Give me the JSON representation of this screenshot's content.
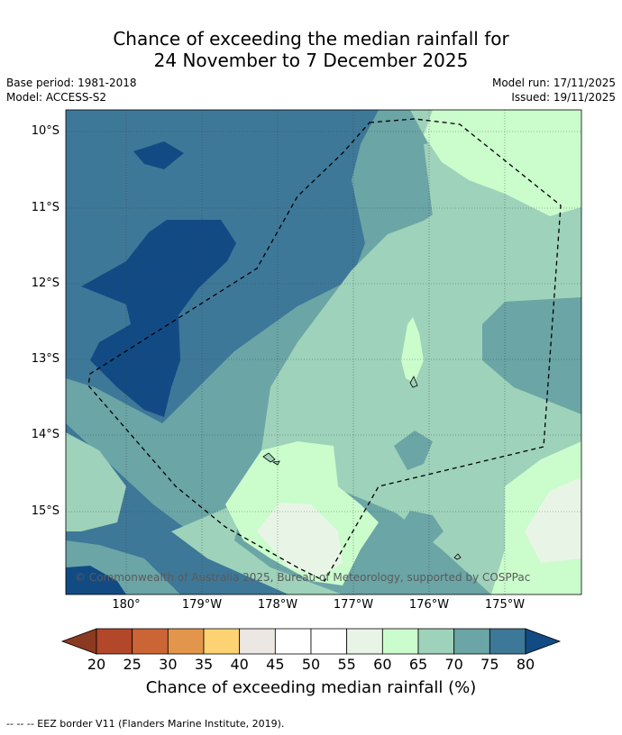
{
  "title_line1": "Chance of exceeding the median rainfall for",
  "title_line2": "24 November to 7 December 2025",
  "base_period": "Base period: 1981-2018",
  "model": "Model: ACCESS-S2",
  "model_run": "Model run: 17/11/2025",
  "issued": "Issued: 19/11/2025",
  "lat_labels": [
    "10°S",
    "11°S",
    "12°S",
    "13°S",
    "14°S",
    "15°S"
  ],
  "lon_labels": [
    "180°",
    "179°W",
    "178°W",
    "177°W",
    "176°W",
    "175°W"
  ],
  "copyright": "© Commonwealth of Australia 2025, Bureau of Meteorology, supported by COSPPac",
  "colorbar": {
    "ticks": [
      "20",
      "25",
      "30",
      "35",
      "40",
      "45",
      "50",
      "55",
      "60",
      "65",
      "70",
      "75",
      "80"
    ],
    "colors": [
      "#8b3a22",
      "#b3472a",
      "#cc6535",
      "#e3964b",
      "#fdd272",
      "#ece7e2",
      "#ffffff",
      "#ffffff",
      "#e8f5e6",
      "#cbfccc",
      "#9ed2ba",
      "#6ba5a6",
      "#3e7898",
      "#124b84"
    ],
    "label": "Chance of exceeding median rainfall (%)"
  },
  "footnote": "--  --  -- EEZ border V11 (Flanders Marine Institute, 2019)."
}
